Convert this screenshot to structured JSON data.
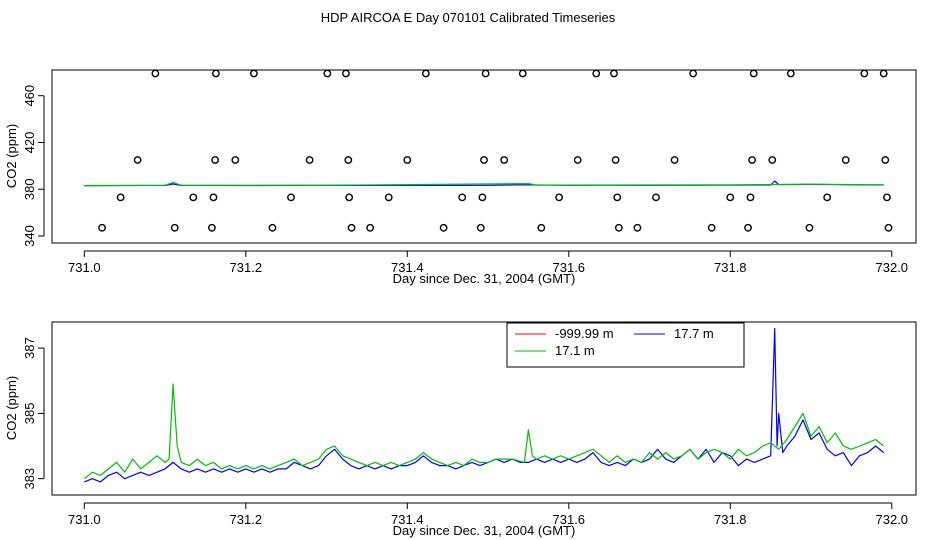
{
  "title": "HDP AIRCOA E  Day 070101  Calibrated Timeseries",
  "chart_data": [
    {
      "type": "line",
      "id": "top",
      "xlabel": "Day since Dec. 31, 2004 (GMT)",
      "ylabel": "CO2 (ppm)",
      "xlim": [
        730.96,
        732.03
      ],
      "ylim": [
        334,
        482
      ],
      "xticks": [
        731.0,
        731.2,
        731.4,
        731.6,
        731.8,
        732.0
      ],
      "xtick_labels": [
        "731.0",
        "731.2",
        "731.4",
        "731.6",
        "731.8",
        "732.0"
      ],
      "yticks": [
        340,
        380,
        420,
        460
      ],
      "ytick_labels": [
        "340",
        "380",
        "420",
        "460"
      ],
      "grid": false,
      "series": [
        {
          "name": "",
          "color": "#0000ff",
          "kind": "line",
          "x": [
            731.0,
            731.05,
            731.1,
            731.11,
            731.12,
            731.2,
            731.3,
            731.4,
            731.5,
            731.55,
            731.6,
            731.65,
            731.7,
            731.8,
            731.85,
            731.855,
            731.86,
            731.9,
            731.95,
            731.99
          ],
          "y": [
            383.0,
            383.2,
            383.3,
            384.5,
            383.3,
            383.2,
            383.3,
            383.3,
            383.4,
            383.8,
            383.4,
            383.5,
            383.4,
            383.5,
            383.6,
            387.0,
            384.0,
            384.2,
            383.8,
            383.6
          ]
        },
        {
          "name": "",
          "color": "#00c000",
          "kind": "line",
          "x": [
            731.0,
            731.1,
            731.11,
            731.12,
            731.3,
            731.55,
            731.56,
            731.8,
            731.9,
            731.99
          ],
          "y": [
            383.1,
            383.4,
            385.8,
            383.4,
            383.4,
            384.8,
            383.5,
            383.7,
            384.3,
            383.7
          ]
        },
        {
          "name": "",
          "color": "#000000",
          "kind": "points",
          "x": [
            731.022,
            731.045,
            731.066,
            731.088,
            731.112,
            731.135,
            731.158,
            731.16,
            731.162,
            731.163,
            731.187,
            731.21,
            731.233,
            731.256,
            731.279,
            731.301,
            731.324,
            731.327,
            731.328,
            731.331,
            731.354,
            731.377,
            731.4,
            731.423,
            731.445,
            731.468,
            731.491,
            731.493,
            731.495,
            731.497,
            731.52,
            731.543,
            731.566,
            731.588,
            731.611,
            731.634,
            731.656,
            731.658,
            731.66,
            731.662,
            731.685,
            731.708,
            731.731,
            731.754,
            731.777,
            731.8,
            731.822,
            731.825,
            731.827,
            731.829,
            731.852,
            731.875,
            731.898,
            731.92,
            731.943,
            731.966,
            731.99,
            731.992,
            731.994,
            731.996
          ],
          "y": [
            347,
            373,
            405,
            479,
            347,
            373,
            347,
            373,
            405,
            479,
            405,
            479,
            347,
            373,
            405,
            479,
            479,
            405,
            373,
            347,
            347,
            373,
            405,
            479,
            347,
            373,
            347,
            373,
            405,
            479,
            405,
            479,
            347,
            373,
            405,
            479,
            479,
            405,
            373,
            347,
            347,
            373,
            405,
            479,
            347,
            373,
            347,
            373,
            405,
            479,
            405,
            479,
            347,
            373,
            405,
            479,
            479,
            405,
            373,
            347
          ]
        }
      ]
    },
    {
      "type": "line",
      "id": "bottom",
      "xlabel": "Day since Dec. 31, 2004 (GMT)",
      "ylabel": "CO2 (ppm)",
      "xlim": [
        730.96,
        732.03
      ],
      "ylim": [
        382.5,
        387.8
      ],
      "xticks": [
        731.0,
        731.2,
        731.4,
        731.6,
        731.8,
        732.0
      ],
      "xtick_labels": [
        "731.0",
        "731.2",
        "731.4",
        "731.6",
        "731.8",
        "732.0"
      ],
      "yticks": [
        383,
        385,
        387
      ],
      "ytick_labels": [
        "383",
        "385",
        "387"
      ],
      "grid": false,
      "legend_position": "top-right",
      "series": [
        {
          "name": "-999.99 m",
          "color": "#ff0000",
          "x": [],
          "y": []
        },
        {
          "name": "17.7 m",
          "color": "#0000ff",
          "x": [
            731.0,
            731.01,
            731.02,
            731.03,
            731.04,
            731.05,
            731.06,
            731.07,
            731.08,
            731.09,
            731.1,
            731.11,
            731.12,
            731.13,
            731.14,
            731.15,
            731.16,
            731.17,
            731.18,
            731.19,
            731.2,
            731.21,
            731.22,
            731.23,
            731.24,
            731.25,
            731.26,
            731.27,
            731.28,
            731.29,
            731.3,
            731.31,
            731.32,
            731.33,
            731.34,
            731.35,
            731.36,
            731.37,
            731.38,
            731.39,
            731.4,
            731.41,
            731.42,
            731.43,
            731.44,
            731.45,
            731.46,
            731.47,
            731.48,
            731.49,
            731.5,
            731.51,
            731.52,
            731.53,
            731.54,
            731.55,
            731.56,
            731.57,
            731.58,
            731.59,
            731.6,
            731.61,
            731.62,
            731.63,
            731.64,
            731.65,
            731.66,
            731.67,
            731.68,
            731.69,
            731.7,
            731.71,
            731.72,
            731.73,
            731.74,
            731.75,
            731.76,
            731.77,
            731.78,
            731.79,
            731.8,
            731.81,
            731.82,
            731.83,
            731.84,
            731.85,
            731.855,
            731.858,
            731.86,
            731.865,
            731.87,
            731.88,
            731.89,
            731.9,
            731.91,
            731.92,
            731.93,
            731.94,
            731.95,
            731.96,
            731.97,
            731.98,
            731.99
          ],
          "y": [
            382.9,
            383.0,
            382.9,
            383.1,
            383.2,
            383.0,
            383.1,
            383.2,
            383.1,
            383.2,
            383.3,
            383.5,
            383.3,
            383.2,
            383.3,
            383.2,
            383.3,
            383.2,
            383.3,
            383.2,
            383.3,
            383.2,
            383.3,
            383.2,
            383.3,
            383.3,
            383.5,
            383.4,
            383.3,
            383.4,
            383.7,
            383.9,
            383.6,
            383.4,
            383.3,
            383.4,
            383.3,
            383.4,
            383.3,
            383.4,
            383.4,
            383.5,
            383.7,
            383.5,
            383.4,
            383.4,
            383.3,
            383.4,
            383.5,
            383.4,
            383.5,
            383.6,
            383.5,
            383.6,
            383.5,
            383.5,
            383.6,
            383.5,
            383.6,
            383.5,
            383.6,
            383.5,
            383.6,
            383.8,
            383.5,
            383.4,
            383.5,
            383.4,
            383.6,
            383.5,
            383.6,
            383.9,
            383.6,
            383.5,
            383.7,
            383.9,
            383.6,
            383.9,
            383.5,
            383.8,
            383.7,
            383.4,
            383.6,
            383.5,
            383.6,
            383.7,
            387.6,
            384.0,
            385.0,
            383.8,
            384.0,
            384.3,
            384.8,
            384.2,
            384.4,
            383.9,
            383.7,
            383.8,
            383.4,
            383.7,
            383.8,
            384.0,
            383.8
          ]
        },
        {
          "name": "17.1 m",
          "color": "#00c000",
          "x": [
            731.0,
            731.01,
            731.02,
            731.03,
            731.04,
            731.05,
            731.06,
            731.07,
            731.08,
            731.09,
            731.1,
            731.105,
            731.11,
            731.115,
            731.12,
            731.13,
            731.14,
            731.15,
            731.16,
            731.17,
            731.18,
            731.19,
            731.2,
            731.21,
            731.22,
            731.23,
            731.24,
            731.25,
            731.26,
            731.27,
            731.28,
            731.29,
            731.3,
            731.31,
            731.32,
            731.33,
            731.34,
            731.35,
            731.36,
            731.37,
            731.38,
            731.39,
            731.4,
            731.41,
            731.42,
            731.43,
            731.44,
            731.45,
            731.46,
            731.47,
            731.48,
            731.49,
            731.5,
            731.51,
            731.52,
            731.53,
            731.545,
            731.55,
            731.555,
            731.56,
            731.57,
            731.58,
            731.59,
            731.6,
            731.61,
            731.62,
            731.63,
            731.64,
            731.65,
            731.66,
            731.67,
            731.68,
            731.69,
            731.7,
            731.71,
            731.72,
            731.73,
            731.74,
            731.75,
            731.76,
            731.77,
            731.78,
            731.79,
            731.8,
            731.81,
            731.82,
            731.83,
            731.84,
            731.85,
            731.86,
            731.87,
            731.88,
            731.89,
            731.9,
            731.91,
            731.92,
            731.93,
            731.94,
            731.95,
            731.96,
            731.97,
            731.98,
            731.99
          ],
          "y": [
            383.0,
            383.2,
            383.1,
            383.3,
            383.5,
            383.2,
            383.6,
            383.3,
            383.5,
            383.7,
            383.5,
            383.6,
            385.9,
            384.0,
            383.5,
            383.4,
            383.6,
            383.4,
            383.5,
            383.3,
            383.4,
            383.3,
            383.4,
            383.3,
            383.4,
            383.3,
            383.4,
            383.5,
            383.6,
            383.4,
            383.5,
            383.6,
            383.9,
            384.0,
            383.7,
            383.6,
            383.5,
            383.4,
            383.5,
            383.4,
            383.5,
            383.4,
            383.5,
            383.6,
            383.8,
            383.6,
            383.5,
            383.4,
            383.5,
            383.4,
            383.6,
            383.5,
            383.5,
            383.6,
            383.6,
            383.6,
            383.5,
            384.5,
            383.7,
            383.6,
            383.7,
            383.6,
            383.7,
            383.6,
            383.7,
            383.8,
            383.9,
            383.7,
            383.5,
            383.7,
            383.5,
            383.6,
            383.5,
            383.8,
            383.6,
            383.8,
            383.6,
            383.7,
            383.9,
            383.6,
            383.8,
            383.9,
            383.8,
            383.6,
            383.9,
            383.7,
            383.8,
            384.0,
            384.1,
            383.9,
            384.2,
            384.6,
            385.0,
            384.3,
            384.6,
            384.1,
            384.4,
            384.0,
            383.9,
            384.0,
            384.1,
            384.2,
            384.0
          ]
        }
      ]
    }
  ]
}
